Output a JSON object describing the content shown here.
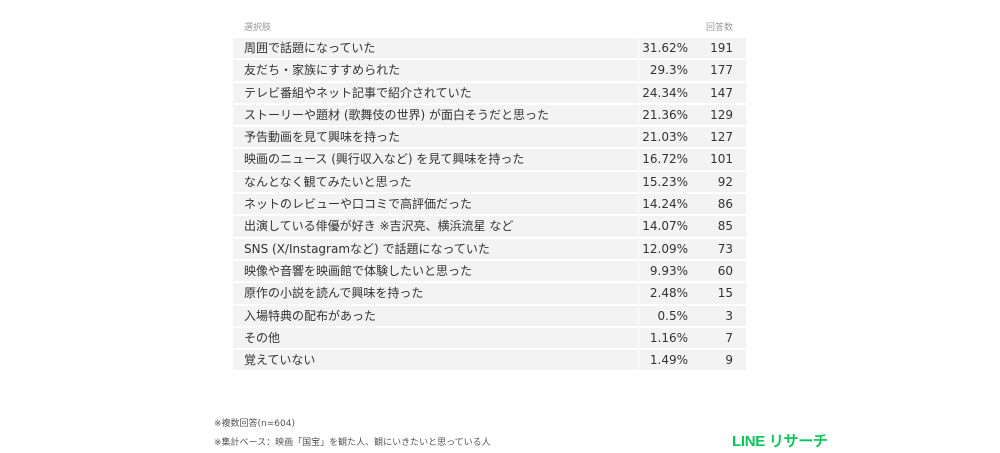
{
  "table": {
    "headers": {
      "choice": "選択肢",
      "count": "回答数"
    },
    "rows": [
      {
        "label": "周囲で話題になっていた",
        "pct": "31.62%",
        "count": "191"
      },
      {
        "label": "友だち・家族にすすめられた",
        "pct": "29.3%",
        "count": "177"
      },
      {
        "label": "テレビ番組やネット記事で紹介されていた",
        "pct": "24.34%",
        "count": "147"
      },
      {
        "label": "ストーリーや題材 (歌舞伎の世界) が面白そうだと思った",
        "pct": "21.36%",
        "count": "129"
      },
      {
        "label": "予告動画を見て興味を持った",
        "pct": "21.03%",
        "count": "127"
      },
      {
        "label": "映画のニュース (興行収入など) を見て興味を持った",
        "pct": "16.72%",
        "count": "101"
      },
      {
        "label": "なんとなく観てみたいと思った",
        "pct": "15.23%",
        "count": "92"
      },
      {
        "label": "ネットのレビューや口コミで高評価だった",
        "pct": "14.24%",
        "count": "86"
      },
      {
        "label": "出演している俳優が好き ※吉沢亮、横浜流星 など",
        "pct": "14.07%",
        "count": "85"
      },
      {
        "label": "SNS (X/Instagramなど) で話題になっていた",
        "pct": "12.09%",
        "count": "73"
      },
      {
        "label": "映像や音響を映画館で体験したいと思った",
        "pct": "9.93%",
        "count": "60"
      },
      {
        "label": "原作の小説を読んで興味を持った",
        "pct": "2.48%",
        "count": "15"
      },
      {
        "label": "入場特典の配布があった",
        "pct": "0.5%",
        "count": "3"
      },
      {
        "label": "その他",
        "pct": "1.16%",
        "count": "7"
      },
      {
        "label": "覚えていない",
        "pct": "1.49%",
        "count": "9"
      }
    ]
  },
  "notes": {
    "multiple": "※複数回答(n=604)",
    "base": "※集計ベース：映画「国宝」を観た人、観にいきたいと思っている人"
  },
  "logo": {
    "text": "LINE リサーチ",
    "color": "#06c755"
  }
}
